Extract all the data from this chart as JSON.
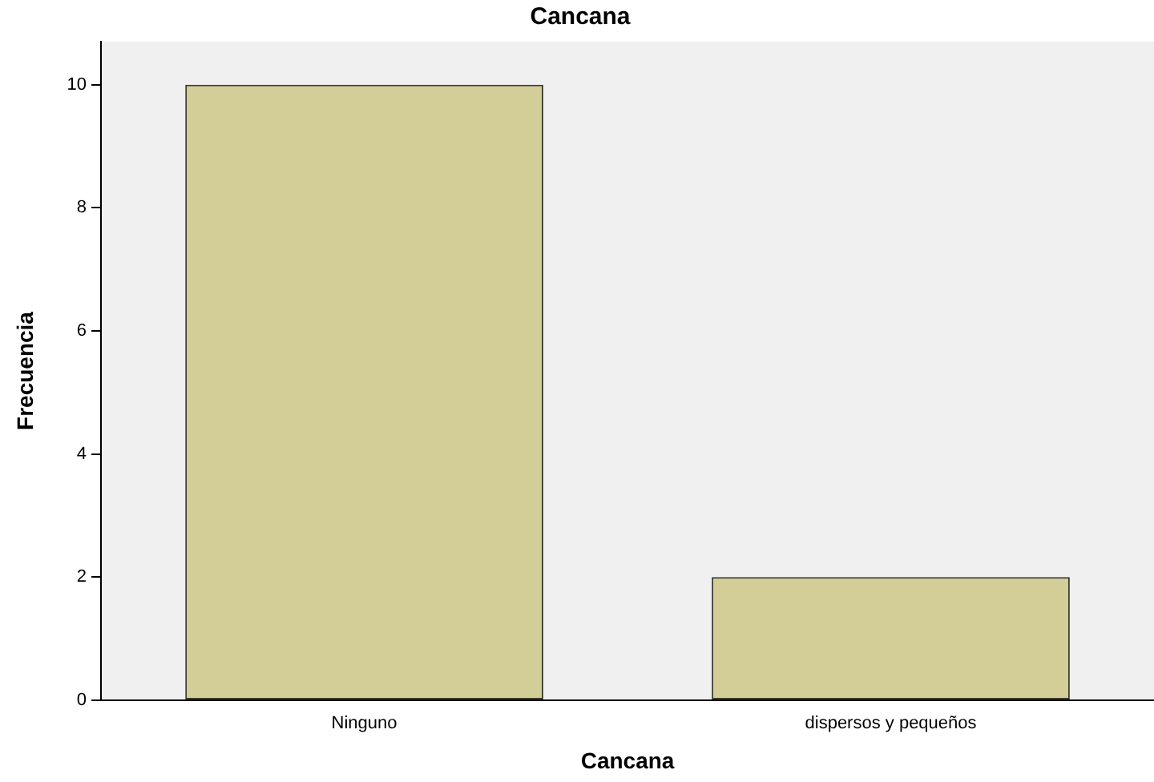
{
  "chart_data": {
    "type": "bar",
    "title": "Cancana",
    "xlabel": "Cancana",
    "ylabel": "Frecuencia",
    "categories": [
      "Ninguno",
      "dispersos y pequeños"
    ],
    "values": [
      10,
      2
    ],
    "color": "#d3ce97",
    "ylim": [
      0,
      10.7
    ],
    "yticks": [
      0,
      2,
      4,
      6,
      8,
      10
    ],
    "grid": false,
    "legend": false
  }
}
